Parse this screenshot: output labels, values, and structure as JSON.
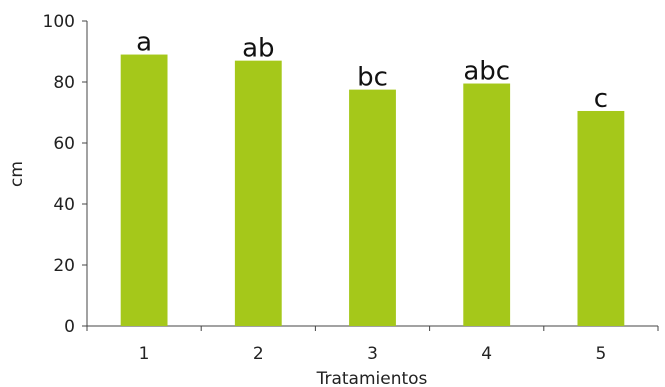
{
  "chart_data": {
    "type": "bar",
    "categories": [
      "1",
      "2",
      "3",
      "4",
      "5"
    ],
    "values": [
      89,
      87,
      77.5,
      79.5,
      70.5
    ],
    "significance_labels": [
      "a",
      "ab",
      "bc",
      "abc",
      "c"
    ],
    "xlabel": "Tratamientos",
    "ylabel": "cm",
    "ylim": [
      0,
      100
    ],
    "yticks": [
      "0",
      "20",
      "40",
      "60",
      "80",
      "100"
    ],
    "grid": false,
    "bar_color": "#a5c81a"
  }
}
